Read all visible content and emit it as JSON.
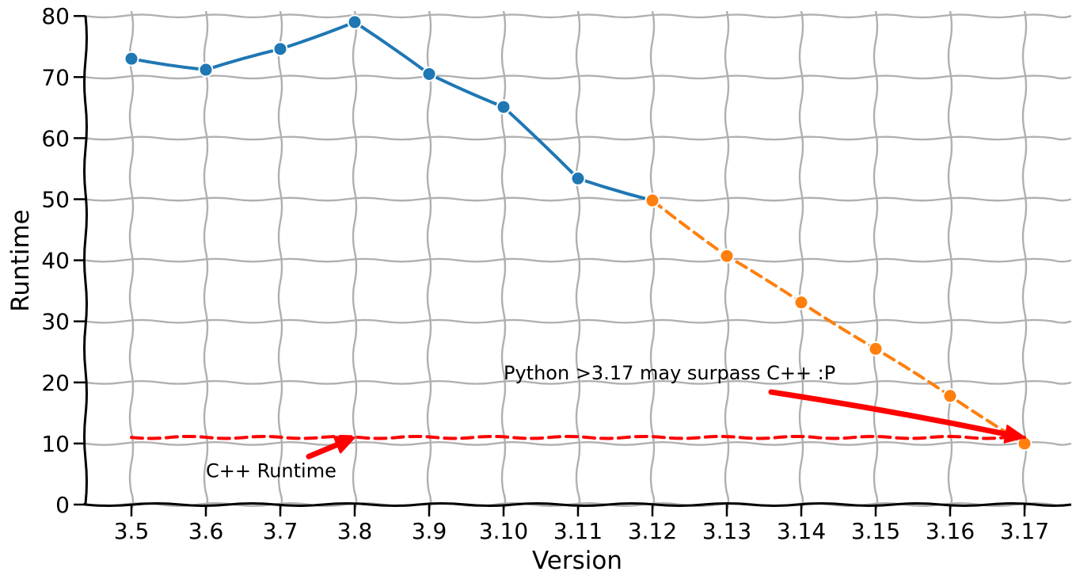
{
  "chart_data": {
    "type": "line",
    "xlabel": "Version",
    "ylabel": "Runtime",
    "ylim": [
      0,
      80
    ],
    "yticks": [
      0,
      10,
      20,
      30,
      40,
      50,
      60,
      70,
      80
    ],
    "categories": [
      "3.5",
      "3.6",
      "3.7",
      "3.8",
      "3.9",
      "3.10",
      "3.11",
      "3.12",
      "3.13",
      "3.14",
      "3.15",
      "3.16",
      "3.17"
    ],
    "grid": true,
    "style": "xkcd",
    "series": [
      {
        "style": "solid",
        "color": "#1f77b4",
        "x": [
          "3.5",
          "3.6",
          "3.7",
          "3.8",
          "3.9",
          "3.10",
          "3.11",
          "3.12"
        ],
        "values": [
          73,
          71.2,
          74.6,
          79,
          70.5,
          65.1,
          53.4,
          49.8
        ]
      },
      {
        "style": "dashed",
        "color": "#ff7f0e",
        "x": [
          "3.12",
          "3.13",
          "3.14",
          "3.15",
          "3.16",
          "3.17"
        ],
        "values": [
          49.8,
          40.7,
          33.1,
          25.5,
          17.8,
          10
        ]
      },
      {
        "style": "dashed",
        "color": "#ff0000",
        "markers": false,
        "x": [
          "3.5",
          "3.17"
        ],
        "values": [
          11,
          11
        ]
      }
    ],
    "annotations": [
      {
        "text": "C++ Runtime",
        "at_x": "3.6",
        "at_y": 4.5,
        "arrow_to_x": "3.8",
        "arrow_to_y": 11,
        "color": "#ff0000"
      },
      {
        "text": "Python >3.17 may surpass  C++ :P",
        "at_x": "3.10",
        "at_y": 20.5,
        "arrow_to_x": "3.17",
        "arrow_to_y": 11,
        "color": "#ff0000"
      }
    ]
  }
}
